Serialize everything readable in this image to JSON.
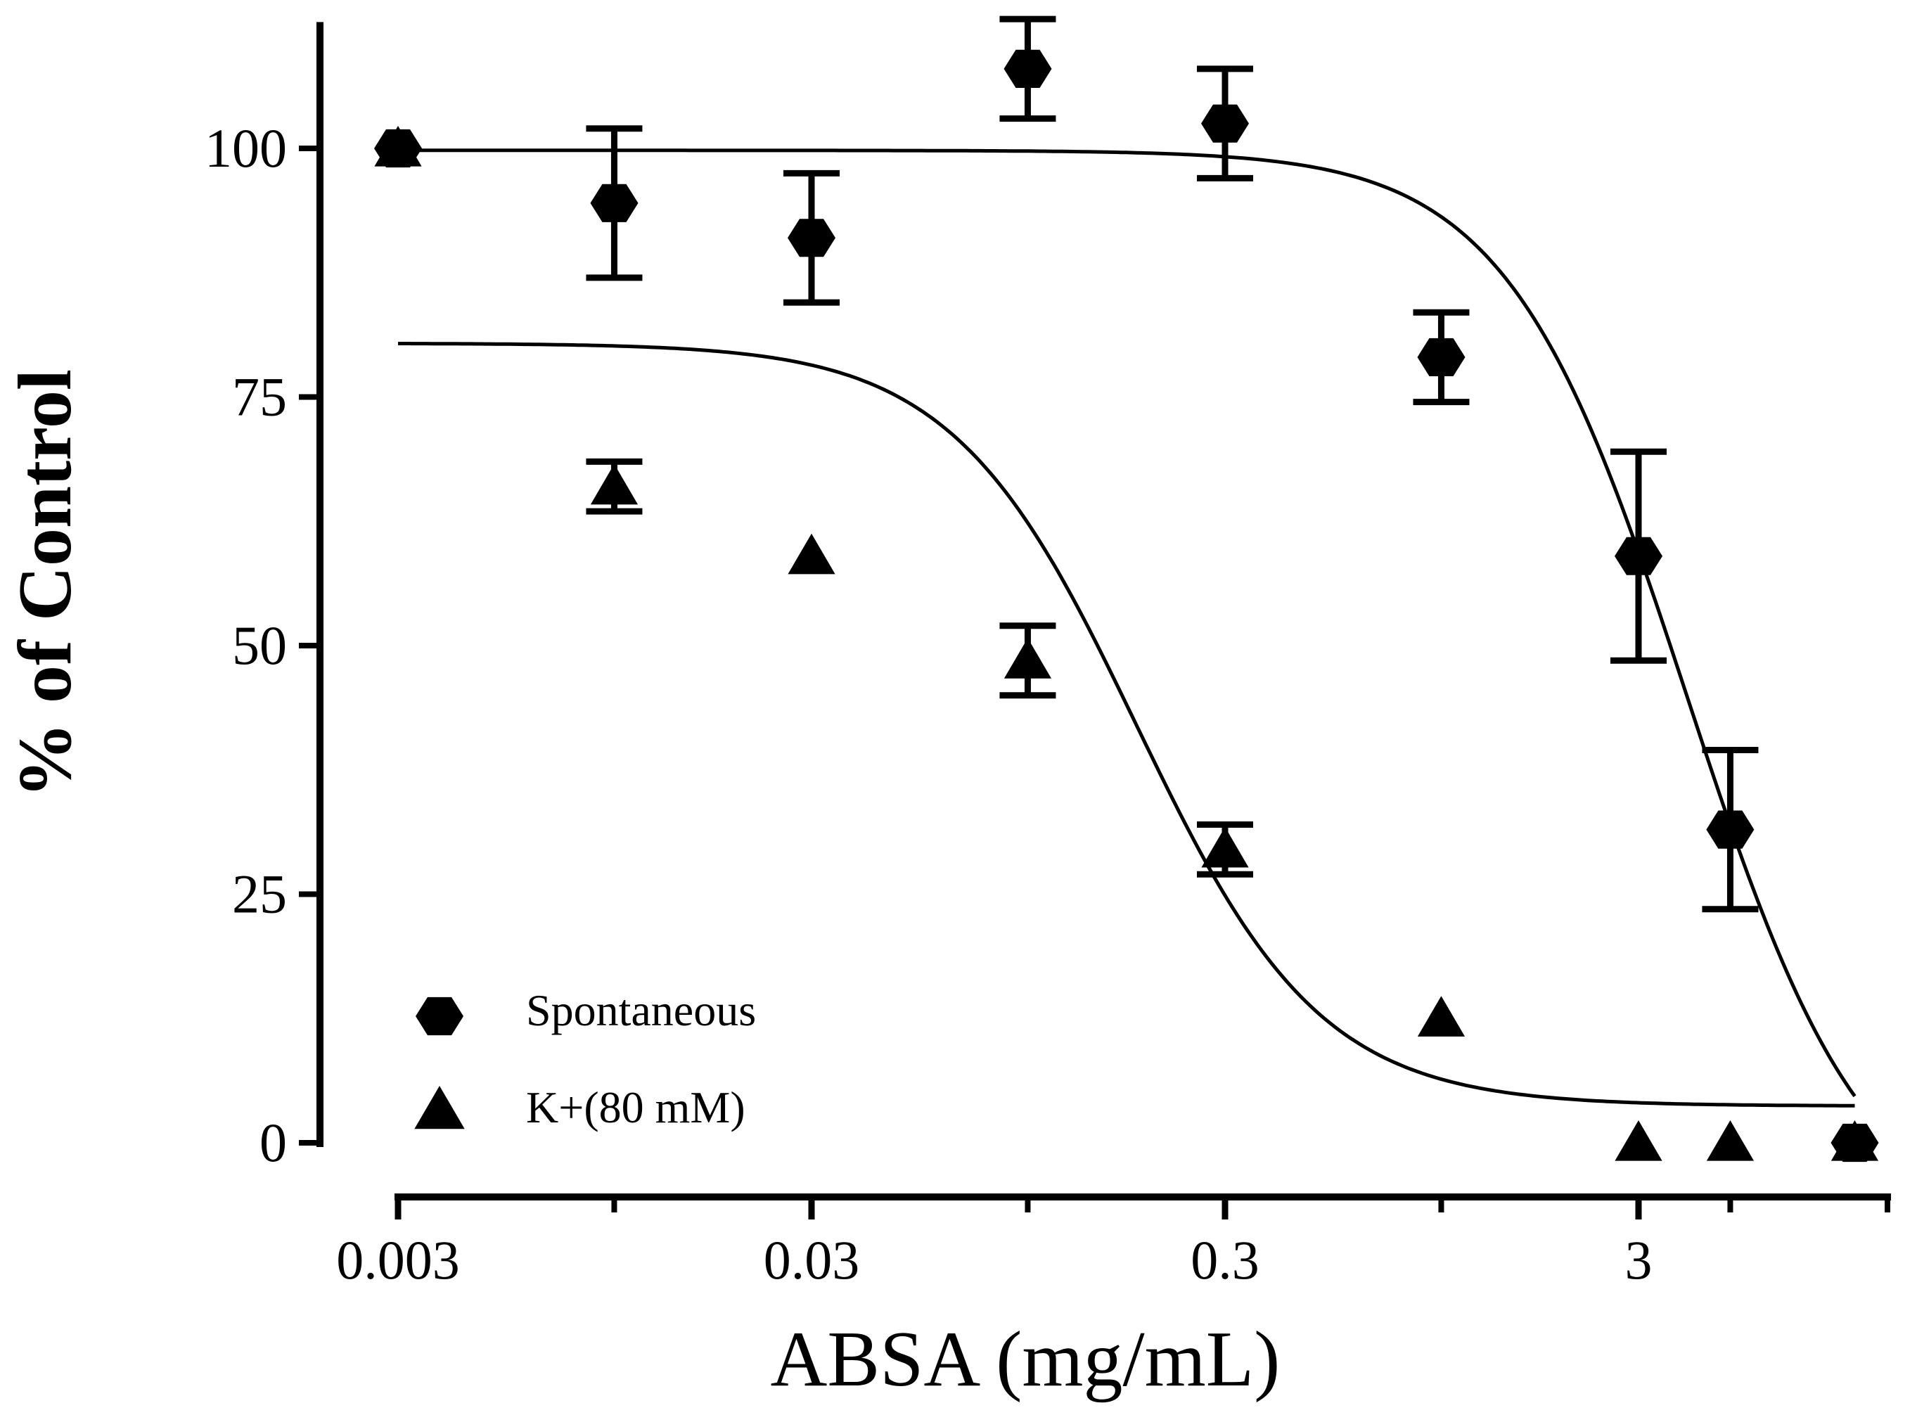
{
  "chart_data": {
    "type": "scatter",
    "title": "",
    "xlabel": "ABSA (mg/mL)",
    "ylabel": "% of Control",
    "x_scale": "log",
    "xlim": [
      0.003,
      13
    ],
    "ylim": [
      -5,
      112
    ],
    "x_ticks": [
      0.003,
      0.03,
      0.3,
      3
    ],
    "x_tick_labels": [
      "0.003",
      "0.03",
      "0.3",
      "3"
    ],
    "x_minor_ticks": [
      0.01,
      0.1,
      1,
      5,
      12
    ],
    "y_ticks": [
      0,
      25,
      50,
      75,
      100
    ],
    "y_tick_labels": [
      "0",
      "25",
      "50",
      "75",
      "100"
    ],
    "grid": false,
    "legend": {
      "position": "bottom-left",
      "entries": [
        "Spontaneous",
        "K+(80 mM)"
      ]
    },
    "series": [
      {
        "name": "Spontaneous",
        "marker": "hexagon",
        "x": [
          0.003,
          0.01,
          0.03,
          0.1,
          0.3,
          1,
          3,
          5,
          10
        ],
        "y": [
          100,
          94.5,
          91,
          108,
          102.5,
          79,
          59,
          31.5,
          0
        ],
        "err": [
          0,
          7.5,
          6.5,
          5,
          5.5,
          4.5,
          10.5,
          8,
          0
        ],
        "fit": {
          "top": 99.8,
          "bottom": -10,
          "ic50": 3.93,
          "hill": 2.0
        }
      },
      {
        "name": "K+(80 mM)",
        "marker": "triangle",
        "x": [
          0.003,
          0.01,
          0.03,
          0.1,
          0.3,
          1,
          3,
          5,
          10
        ],
        "y": [
          100,
          66,
          59,
          48.5,
          29.5,
          12.5,
          0,
          0,
          0
        ],
        "err": [
          0,
          2.5,
          0,
          3.5,
          2.5,
          0,
          0,
          0,
          0
        ],
        "fit": {
          "top": 80.4,
          "bottom": 3.7,
          "ic50": 0.183,
          "hill": 1.95
        }
      }
    ]
  }
}
